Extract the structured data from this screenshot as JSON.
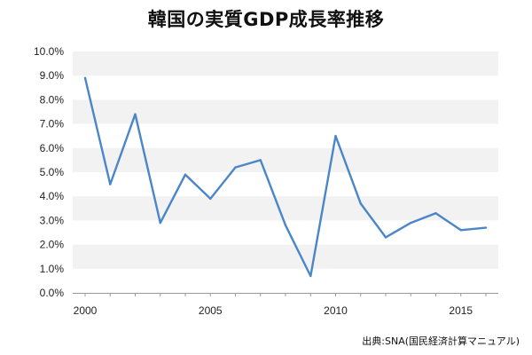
{
  "source": "出典:SNA(国民経済計算マニュアル)",
  "chart_data": {
    "type": "line",
    "title": "韓国の実質GDP成長率推移",
    "xlabel": "",
    "ylabel": "",
    "xlim": [
      2000,
      2016
    ],
    "ylim": [
      0,
      10
    ],
    "x_ticks": [
      2000,
      2005,
      2010,
      2015
    ],
    "y_ticks": [
      "0.0%",
      "1.0%",
      "2.0%",
      "3.0%",
      "4.0%",
      "5.0%",
      "6.0%",
      "7.0%",
      "8.0%",
      "9.0%",
      "10.0%"
    ],
    "grid": "alternating horizontal bands",
    "line_color": "#4a86c8",
    "band_color": "#f2f2f2",
    "series": [
      {
        "x": [
          2000,
          2001,
          2002,
          2003,
          2004,
          2005,
          2006,
          2007,
          2008,
          2009,
          2010,
          2011,
          2012,
          2013,
          2014,
          2015,
          2016
        ],
        "values": [
          8.9,
          4.5,
          7.4,
          2.9,
          4.9,
          3.9,
          5.2,
          5.5,
          2.8,
          0.7,
          6.5,
          3.7,
          2.3,
          2.9,
          3.3,
          2.6,
          2.7
        ]
      }
    ]
  }
}
